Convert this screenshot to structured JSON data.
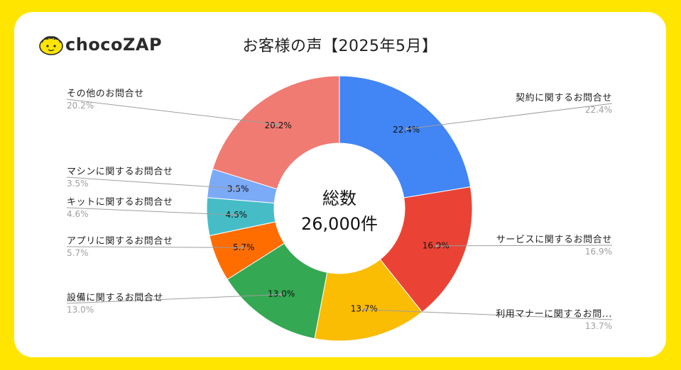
{
  "logo": {
    "text_a": "choco",
    "text_b": "ZAP"
  },
  "chart_data": {
    "type": "pie",
    "title": "お客様の声【2025年5月】",
    "center_text": [
      "総数",
      "26,000件"
    ],
    "slices": [
      {
        "label": "契約に関するお問合せ",
        "value": 22.4,
        "value_label": "22.4%",
        "color": "#4285f4"
      },
      {
        "label": "サービスに関するお問合せ",
        "value": 16.9,
        "value_label": "16.9%",
        "color": "#ea4335"
      },
      {
        "label": "利用マナーに関するお問...",
        "value": 13.7,
        "value_label": "13.7%",
        "color": "#fbbc04"
      },
      {
        "label": "設備に関するお問合せ",
        "value": 13.0,
        "value_label": "13.0%",
        "color": "#34a853"
      },
      {
        "label": "アプリに関するお問合せ",
        "value": 5.7,
        "value_label": "5.7%",
        "color": "#ff6d01"
      },
      {
        "label": "キットに関するお問合せ",
        "value": 4.6,
        "value_label": "4.6%",
        "color": "#46bdc6"
      },
      {
        "label": "マシンに関するお問合せ",
        "value": 3.5,
        "value_label": "3.5%",
        "color": "#7baaf7"
      },
      {
        "label": "その他のお問合せ",
        "value": 20.2,
        "value_label": "20.2%",
        "color": "#f07b72"
      }
    ]
  }
}
